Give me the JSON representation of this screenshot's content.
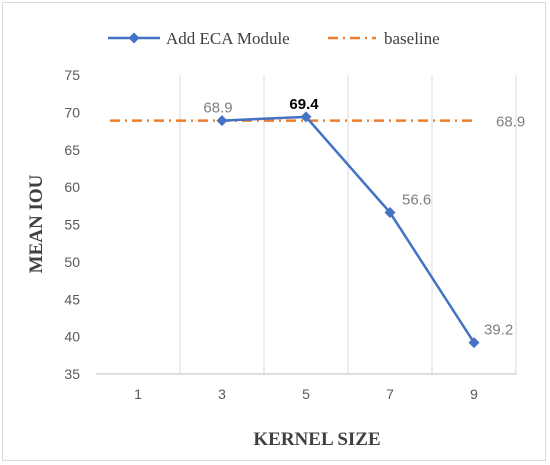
{
  "chart_data": {
    "type": "line",
    "categories": [
      "1",
      "3",
      "5",
      "7",
      "9"
    ],
    "xlabel": "KERNEL SIZE",
    "ylabel": "MEAN IOU",
    "ylim": [
      35,
      75
    ],
    "yticks": [
      35,
      40,
      45,
      50,
      55,
      60,
      65,
      70,
      75
    ],
    "grid": "vertical",
    "legend_position": "top",
    "series": [
      {
        "name": "Add ECA Module",
        "color": "#4472c4",
        "marker": "diamond",
        "values": [
          null,
          68.9,
          69.4,
          56.6,
          39.2
        ],
        "labels": [
          "",
          "68.9",
          "69.4",
          "56.6",
          "39.2"
        ],
        "bold_label_index": 2
      },
      {
        "name": "baseline",
        "color": "#ed7d31",
        "style": "dash-dot",
        "values": [
          68.9,
          68.9,
          68.9,
          68.9,
          68.9
        ],
        "end_label": "68.9"
      }
    ]
  }
}
